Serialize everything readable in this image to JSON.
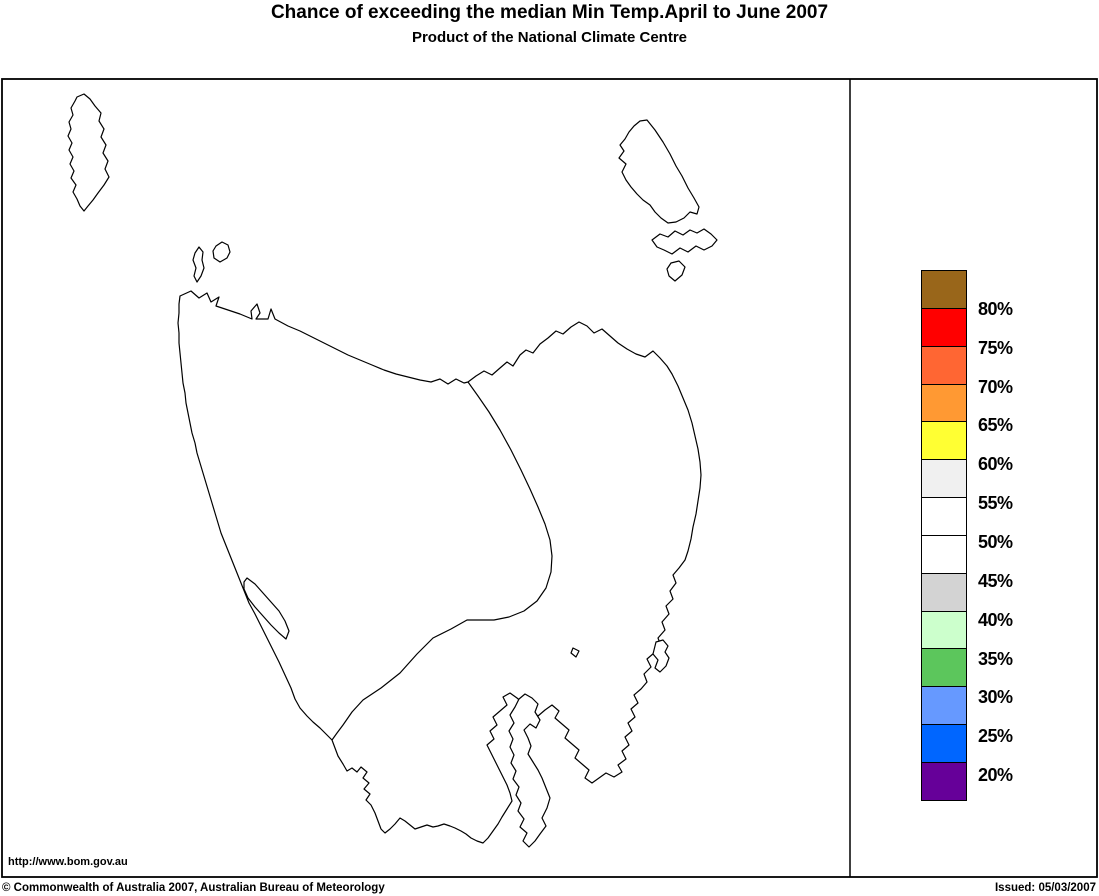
{
  "header": {
    "title": "Chance of exceeding the median Min Temp.April to June 2007",
    "subtitle": "Product of the National Climate Centre"
  },
  "map": {
    "url_label": "http://www.bom.gov.au"
  },
  "legend": {
    "swatches": [
      "#99661A",
      "#FF0000",
      "#FF6633",
      "#FF9933",
      "#FFFF33",
      "#F0F0F0",
      "#FFFFFF",
      "#FFFFFF",
      "#D3D3D3",
      "#CCFFCC",
      "#5CC65C",
      "#6699FF",
      "#0066FF",
      "#660099"
    ],
    "labels": [
      "80%",
      "75%",
      "70%",
      "65%",
      "60%",
      "55%",
      "50%",
      "45%",
      "40%",
      "35%",
      "30%",
      "25%",
      "20%"
    ]
  },
  "footer": {
    "copyright": "© Commonwealth of Australia 2007, Australian Bureau of Meteorology",
    "issued": "Issued: 05/03/2007"
  }
}
